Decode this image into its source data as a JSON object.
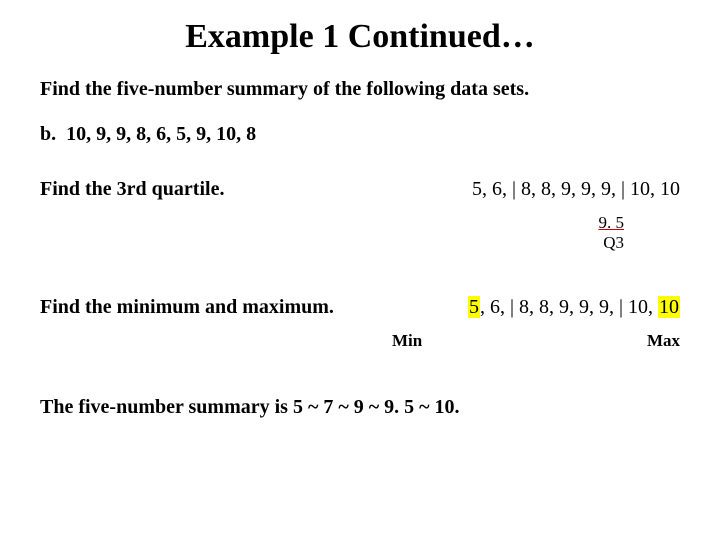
{
  "title": "Example 1 Continued…",
  "instruction": "Find the five-number summary of the following data sets.",
  "part_label": "b.",
  "data_set": "10, 9, 9, 8, 6, 5, 9, 10, 8",
  "step1": {
    "label": "Find the 3rd quartile.",
    "data": "5, 6, | 8, 8, 9, 9, 9, | 10, 10",
    "q3_value": "9. 5",
    "q3_label": "Q3"
  },
  "step2": {
    "label": "Find the minimum and maximum.",
    "prefix": "5",
    "mid": ", 6, | 8, 8, 9, 9, 9, | 10, ",
    "suffix": "10",
    "min_label": "Min",
    "max_label": "Max"
  },
  "summary": "The five-number summary is 5 ~ 7 ~ 9 ~ 9. 5 ~ 10.",
  "colors": {
    "highlight": "#ffff00",
    "underline": "#cc0000",
    "text": "#000000",
    "background": "#ffffff"
  },
  "typography": {
    "title_fontsize": 34,
    "body_fontsize": 20,
    "annot_fontsize": 17,
    "font_family": "Times New Roman"
  }
}
